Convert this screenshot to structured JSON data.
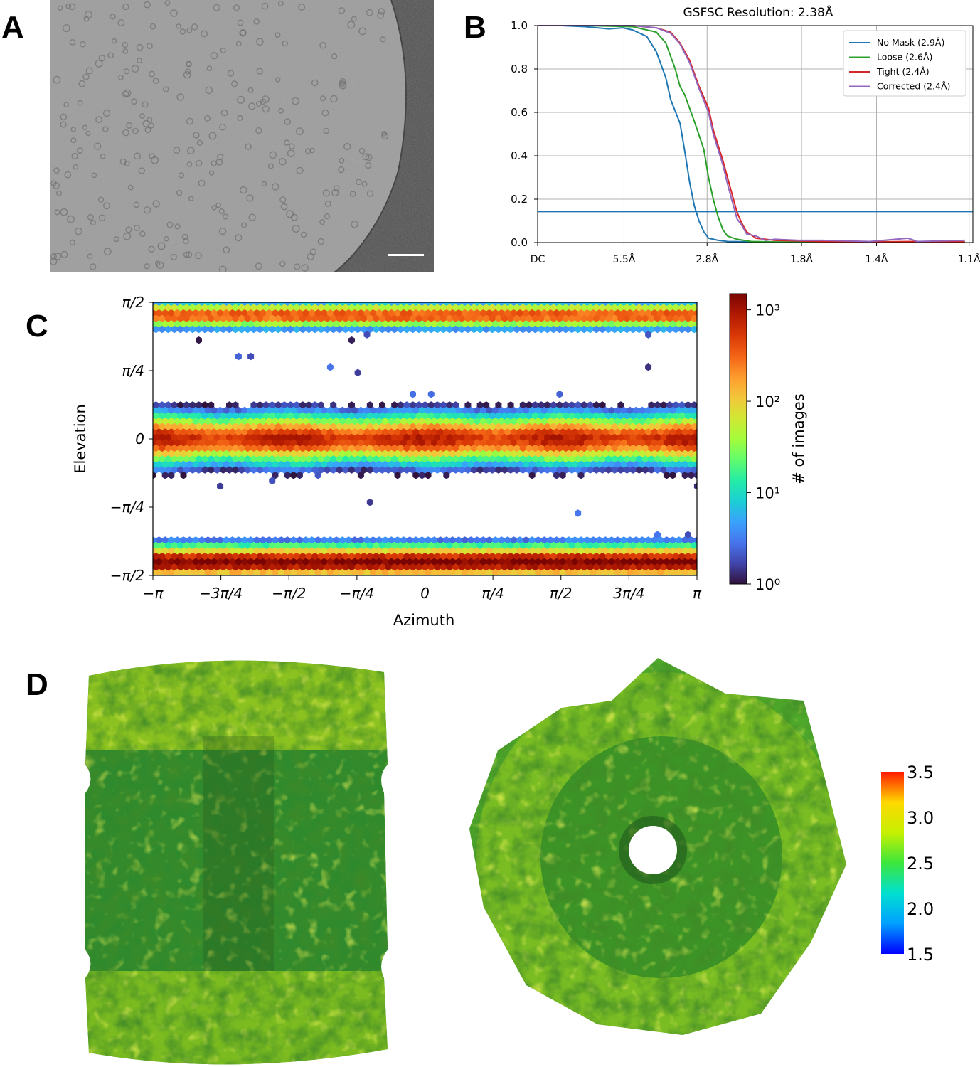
{
  "panels": {
    "a": "A",
    "b": "B",
    "c": "C",
    "d": "D"
  },
  "chart_data": [
    {
      "type": "line",
      "panel": "B",
      "title": "GSFSC Resolution: 2.38Å",
      "x_tick_labels": [
        "DC",
        "5.5Å",
        "2.8Å",
        "1.8Å",
        "1.4Å",
        "1.1Å"
      ],
      "x_tick_values_inv_angstrom": [
        0,
        0.182,
        0.357,
        0.556,
        0.714,
        0.909
      ],
      "xlim": [
        0,
        0.917
      ],
      "ylim": [
        0,
        1.0
      ],
      "y_ticks": [
        "0.0",
        "0.2",
        "0.4",
        "0.6",
        "0.8",
        "1.0"
      ],
      "grid": true,
      "legend_position": "top-right",
      "threshold_line": {
        "y": 0.143,
        "color": "#1f77b4"
      },
      "series": [
        {
          "name": "No Mask (2.9Å)",
          "color": "#1f77b4",
          "x": [
            0,
            0.05,
            0.1,
            0.15,
            0.18,
            0.2,
            0.23,
            0.25,
            0.27,
            0.28,
            0.3,
            0.31,
            0.32,
            0.33,
            0.34,
            0.35,
            0.36,
            0.38,
            0.4,
            0.5,
            0.6,
            0.7,
            0.8,
            0.9
          ],
          "y": [
            1.0,
            1.0,
            0.995,
            0.985,
            0.99,
            0.98,
            0.95,
            0.88,
            0.76,
            0.66,
            0.55,
            0.42,
            0.28,
            0.17,
            0.1,
            0.05,
            0.02,
            0.01,
            0.005,
            0.002,
            0.002,
            0.002,
            0.002,
            0.002
          ]
        },
        {
          "name": "Loose (2.6Å)",
          "color": "#2ca02c",
          "x": [
            0,
            0.1,
            0.2,
            0.25,
            0.27,
            0.29,
            0.3,
            0.31,
            0.33,
            0.35,
            0.36,
            0.37,
            0.38,
            0.39,
            0.4,
            0.42,
            0.45,
            0.5,
            0.6,
            0.7,
            0.8,
            0.9
          ],
          "y": [
            1.0,
            1.0,
            0.995,
            0.97,
            0.92,
            0.8,
            0.72,
            0.68,
            0.56,
            0.43,
            0.3,
            0.2,
            0.12,
            0.06,
            0.03,
            0.015,
            0.005,
            0.003,
            0.002,
            0.005,
            0.002,
            0.002
          ]
        },
        {
          "name": "Tight (2.4Å)",
          "color": "#d62728",
          "x": [
            0,
            0.1,
            0.2,
            0.25,
            0.28,
            0.3,
            0.32,
            0.34,
            0.36,
            0.37,
            0.38,
            0.39,
            0.4,
            0.41,
            0.42,
            0.43,
            0.44,
            0.46,
            0.5,
            0.6,
            0.7,
            0.8,
            0.9
          ],
          "y": [
            1.0,
            1.0,
            1.0,
            0.99,
            0.97,
            0.92,
            0.84,
            0.72,
            0.62,
            0.52,
            0.45,
            0.38,
            0.3,
            0.22,
            0.14,
            0.09,
            0.05,
            0.02,
            0.01,
            0.005,
            0.003,
            0.005,
            0.003
          ]
        },
        {
          "name": "Corrected (2.4Å)",
          "color": "#9467bd",
          "x": [
            0,
            0.1,
            0.2,
            0.25,
            0.28,
            0.3,
            0.32,
            0.34,
            0.36,
            0.37,
            0.38,
            0.39,
            0.4,
            0.41,
            0.42,
            0.43,
            0.44,
            0.46,
            0.48,
            0.5,
            0.55,
            0.6,
            0.7,
            0.78,
            0.8,
            0.9
          ],
          "y": [
            1.0,
            1.0,
            1.0,
            0.99,
            0.965,
            0.915,
            0.83,
            0.71,
            0.6,
            0.5,
            0.43,
            0.36,
            0.27,
            0.19,
            0.11,
            0.08,
            0.04,
            0.03,
            0.01,
            0.015,
            0.01,
            0.01,
            0.005,
            0.02,
            0.005,
            0.01
          ]
        }
      ]
    },
    {
      "type": "heatmap",
      "panel": "C",
      "xlabel": "Azimuth",
      "ylabel": "Elevation",
      "x_tick_labels": [
        "−π",
        "−3π/4",
        "−π/2",
        "−π/4",
        "0",
        "π/4",
        "π/2",
        "3π/4",
        "π"
      ],
      "y_tick_labels": [
        "−π/2",
        "−π/4",
        "0",
        "π/4",
        "π/2"
      ],
      "xlim": [
        -3.1416,
        3.1416
      ],
      "ylim": [
        -1.5708,
        1.5708
      ],
      "colorbar_label": "# of images",
      "colorbar_scale": "log",
      "colorbar_ticks": [
        "10⁰",
        "10¹",
        "10²",
        "10³"
      ],
      "colorbar_range": [
        1,
        1500
      ],
      "colormap_stops": [
        "#30123b",
        "#4145ab",
        "#4675ed",
        "#39a2fc",
        "#1bcfd4",
        "#24eca6",
        "#61fc6c",
        "#a4fc3b",
        "#d1e834",
        "#f3c63a",
        "#fe9b2d",
        "#f36315",
        "#d93806",
        "#b11901",
        "#7a0403"
      ],
      "bands": [
        {
          "elevation": 1.42,
          "half_width": 0.1,
          "peak_count": 400
        },
        {
          "elevation": 0.0,
          "half_width": 0.18,
          "peak_count": 900
        },
        {
          "elevation": -1.42,
          "half_width": 0.12,
          "peak_count": 1500
        }
      ]
    },
    {
      "type": "colorbar",
      "panel": "D",
      "ticks": [
        "3.5",
        "3.0",
        "2.5",
        "2.0",
        "1.5"
      ],
      "range": [
        1.5,
        3.5
      ],
      "colors": [
        "#ff1a00",
        "#ffd800",
        "#c6f000",
        "#3ce63c",
        "#00e0d0",
        "#00a0ff",
        "#0000ff"
      ]
    }
  ]
}
